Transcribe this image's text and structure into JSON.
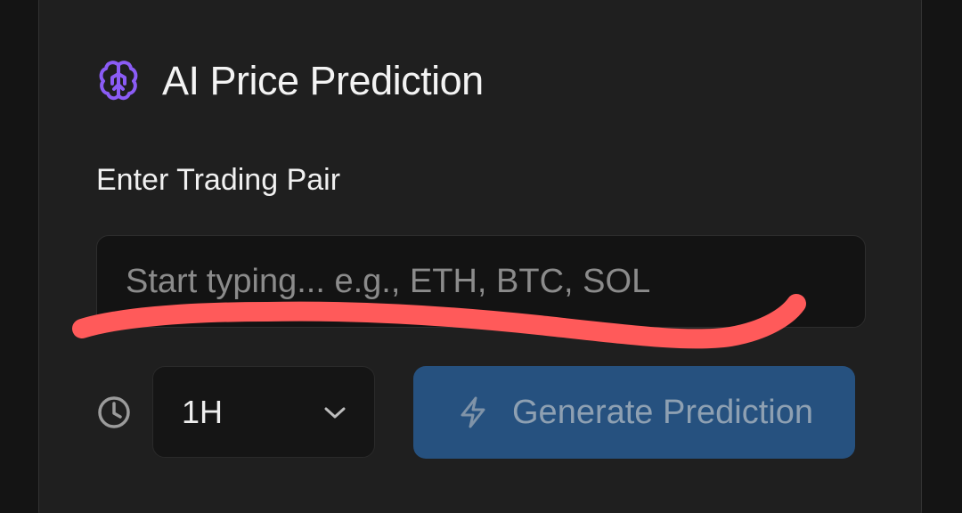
{
  "app": {
    "title": "AI Price Prediction",
    "icons": {
      "header": "brain-icon",
      "timeframe": "clock-icon",
      "dropdown": "chevron-down-icon",
      "action": "lightning-icon"
    }
  },
  "form": {
    "pair_label": "Enter Trading Pair",
    "pair_input": {
      "value": "",
      "placeholder": "Start typing... e.g., ETH, BTC, SOL"
    },
    "timeframe": {
      "selected": "1H"
    },
    "generate_button": {
      "label": "Generate Prediction",
      "state": "disabled"
    }
  },
  "colors": {
    "card_background": "#1f1f1f",
    "brand_icon": "#8b5cf6",
    "button_background": "#26517f",
    "annotation_stroke": "#ff5a5a"
  }
}
